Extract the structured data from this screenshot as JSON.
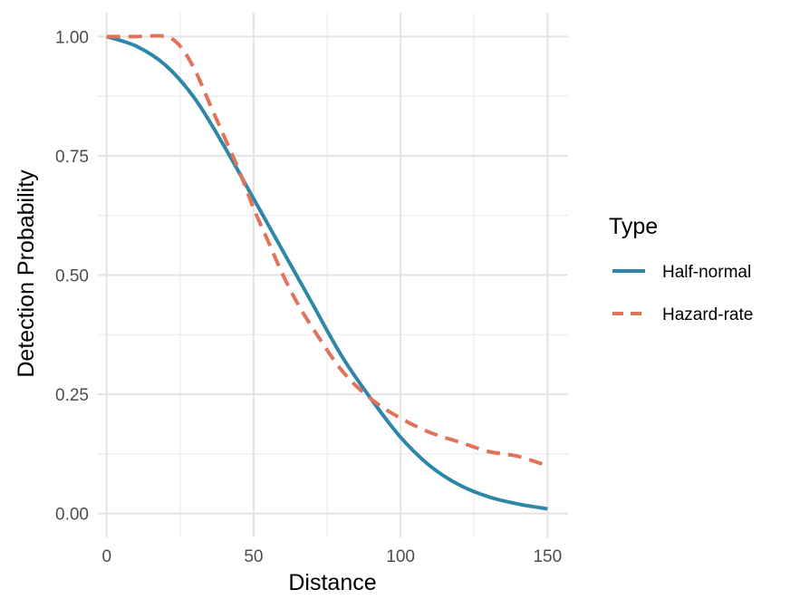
{
  "chart_data": {
    "type": "line",
    "xlabel": "Distance",
    "ylabel": "Detection Probability",
    "xlim": [
      -3,
      157
    ],
    "ylim": [
      -0.05,
      1.05
    ],
    "x_ticks": [
      0,
      50,
      100,
      150
    ],
    "x_tick_labels": [
      "0",
      "50",
      "100",
      "150"
    ],
    "y_ticks": [
      0,
      0.25,
      0.5,
      0.75,
      1
    ],
    "y_tick_labels": [
      "0.00",
      "0.25",
      "0.50",
      "0.75",
      "1.00"
    ],
    "grid": true,
    "legend": {
      "title": "Type",
      "position": "right"
    },
    "series": [
      {
        "name": "Half-normal",
        "color": "#2E86A8",
        "dash": "solid",
        "x": [
          0,
          10,
          20,
          30,
          40,
          50,
          60,
          70,
          80,
          90,
          100,
          110,
          120,
          130,
          140,
          150
        ],
        "y": [
          1.0,
          0.98,
          0.94,
          0.87,
          0.77,
          0.66,
          0.55,
          0.44,
          0.33,
          0.24,
          0.16,
          0.1,
          0.06,
          0.035,
          0.02,
          0.01
        ]
      },
      {
        "name": "Hazard-rate",
        "color": "#E07358",
        "dash": "dashed",
        "x": [
          0,
          10,
          20,
          25,
          30,
          35,
          40,
          45,
          50,
          55,
          60,
          65,
          70,
          80,
          90,
          100,
          110,
          120,
          130,
          140,
          150
        ],
        "y": [
          1.0,
          1.0,
          1.0,
          0.98,
          0.93,
          0.86,
          0.79,
          0.72,
          0.64,
          0.57,
          0.5,
          0.44,
          0.39,
          0.3,
          0.24,
          0.2,
          0.17,
          0.15,
          0.13,
          0.12,
          0.1
        ]
      }
    ]
  }
}
